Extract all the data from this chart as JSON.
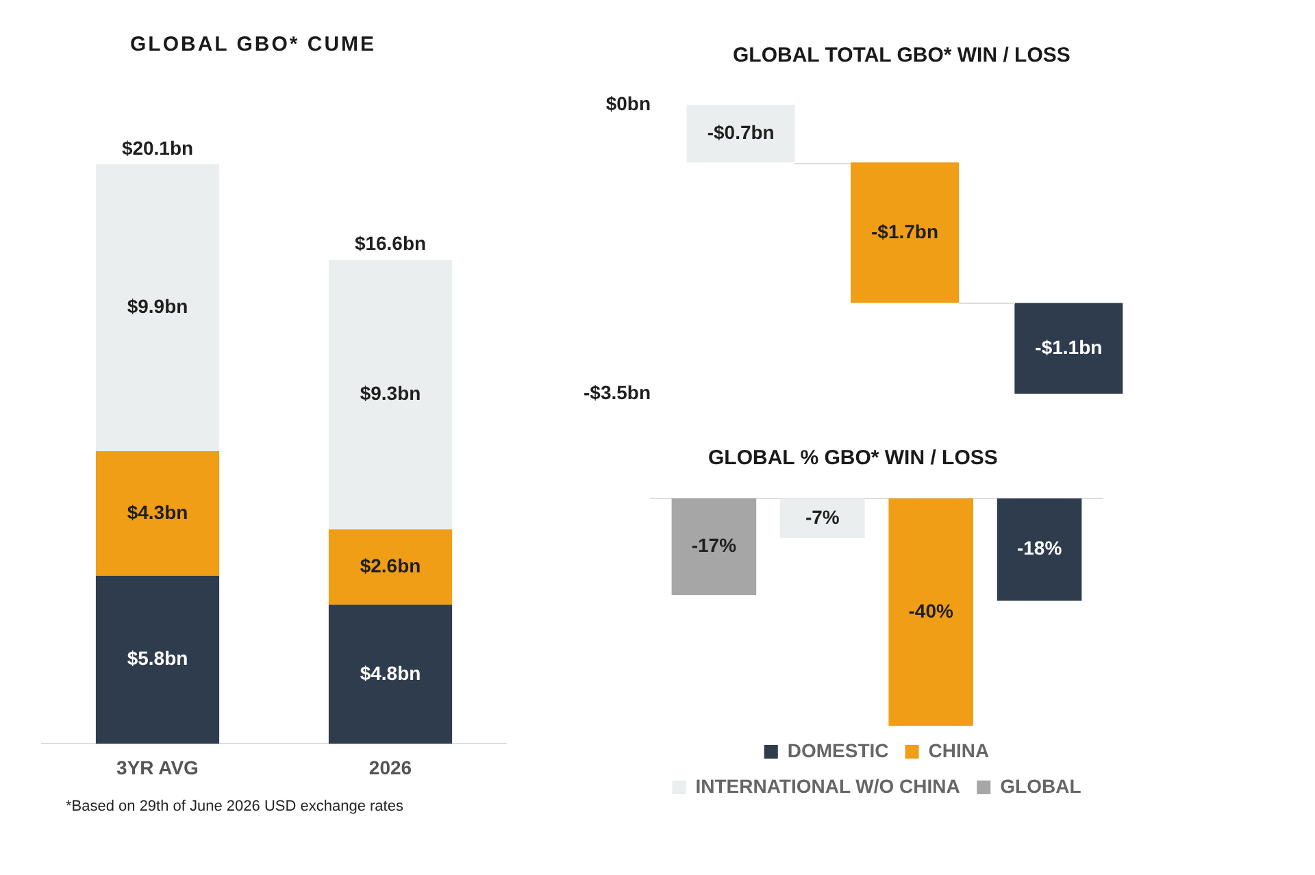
{
  "chart_data": [
    {
      "type": "bar",
      "title": "GLOBAL GBO* CUME",
      "categories": [
        "3YR AVG",
        "2026"
      ],
      "stacked": true,
      "tick_labels": "x",
      "series": [
        {
          "color": "#2e3c4e",
          "values": [
            5.8,
            4.8
          ],
          "value_labels": [
            "$5.8bn",
            "$4.8bn"
          ]
        },
        {
          "color": "#f09e16",
          "values": [
            4.3,
            2.6
          ],
          "value_labels": [
            "$4.3bn",
            "$2.6bn"
          ]
        },
        {
          "color": "#ebeeee",
          "values": [
            9.9,
            9.3
          ],
          "value_labels": [
            "$9.9bn",
            "$9.3bn"
          ]
        }
      ],
      "totals": [
        "$20.1bn",
        "$16.6bn"
      ],
      "annotations": [
        "*Based on 29th of June 2026 USD exchange rates"
      ]
    },
    {
      "type": "bar",
      "title": "GLOBAL TOTAL GBO* WIN / LOSS",
      "categories": [
        null,
        null,
        null
      ],
      "tick_labels": "y",
      "values": [
        -0.7,
        -1.7,
        -1.1
      ],
      "base": [
        0,
        -0.7,
        -2.4
      ],
      "colors": [
        "#ebeeee",
        "#f09e16",
        "#2e3c4e"
      ],
      "value_labels": [
        "-$0.7bn",
        "-$1.7bn",
        "-$1.1bn"
      ],
      "ylim": [
        -3.5,
        0
      ],
      "yticks": [
        {
          "value": 0,
          "label": "$0bn"
        },
        {
          "value": -3.5,
          "label": "-$3.5bn"
        }
      ]
    },
    {
      "type": "bar",
      "title": "GLOBAL % GBO* WIN / LOSS",
      "categories": [
        null
      ],
      "tick_labels": false,
      "legend": "bottom",
      "series": [
        {
          "name": "GLOBAL",
          "color": "#a6a6a6",
          "values": [
            -17
          ],
          "value_labels": [
            "-17%"
          ]
        },
        {
          "name": "INTERNATIONAL W/O CHINA",
          "color": "#ebeeee",
          "values": [
            -7
          ],
          "value_labels": [
            "-7%"
          ]
        },
        {
          "name": "CHINA",
          "color": "#f09e16",
          "values": [
            -40
          ],
          "value_labels": [
            "-40%"
          ]
        },
        {
          "name": "DOMESTIC",
          "color": "#2e3c4e",
          "values": [
            -18
          ],
          "value_labels": [
            "-18%"
          ]
        }
      ]
    }
  ]
}
